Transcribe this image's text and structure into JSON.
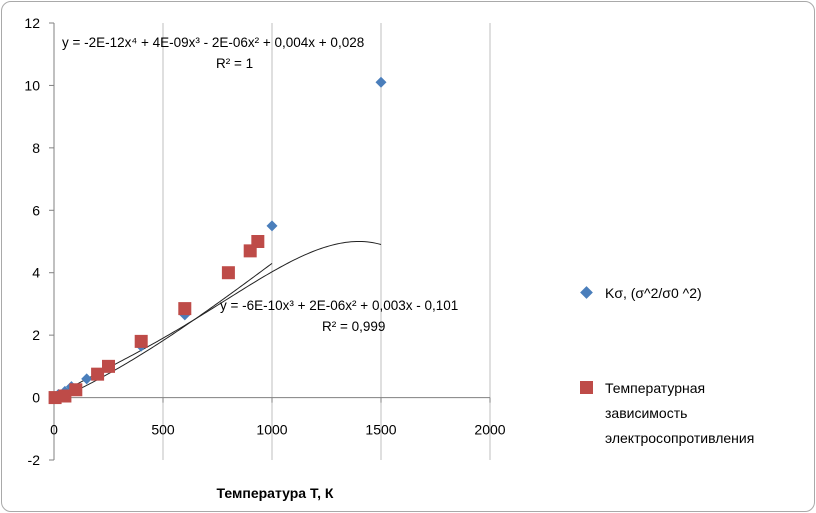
{
  "chart_data": {
    "type": "scatter",
    "title": "",
    "xlabel": "Температура Т, К",
    "ylabel": "",
    "xlim": [
      0,
      2000
    ],
    "ylim": [
      -2,
      12
    ],
    "x_ticks": [
      "0",
      "500",
      "1000",
      "1500",
      "2000"
    ],
    "y_ticks": [
      "-2",
      "0",
      "2",
      "4",
      "6",
      "8",
      "10",
      "12"
    ],
    "grid": "vertical",
    "series": [
      {
        "name": "Kσ, (σ^2/σ0 ^2)",
        "marker": "diamond",
        "color": "#4a7ebb",
        "x": [
          20,
          50,
          80,
          150,
          400,
          600,
          1000,
          1500
        ],
        "y": [
          0.1,
          0.2,
          0.35,
          0.6,
          1.65,
          2.65,
          5.5,
          10.1
        ],
        "trendline": {
          "equation": "y = -2E-12x⁴ + 4E-09x³ - 2E-06x² + 0,004x + 0,028",
          "r2": "R² = 1",
          "coef": [
            0.028,
            0.004,
            -2e-06,
            4e-09,
            -2e-12
          ],
          "x_range": [
            0,
            1500
          ]
        }
      },
      {
        "name": "Температурная зависимость электросопротивления",
        "legend_lines": [
          "Температурная",
          "зависимость",
          "электросопротивления"
        ],
        "marker": "square",
        "color": "#be4b48",
        "x": [
          5,
          50,
          100,
          200,
          250,
          400,
          600,
          800,
          900,
          935
        ],
        "y": [
          0.0,
          0.05,
          0.25,
          0.75,
          1.0,
          1.8,
          2.85,
          4.0,
          4.7,
          5.0
        ],
        "trendline": {
          "equation": "y = -6E-10x³ + 2E-06x² + 0,003x - 0,101",
          "r2": "R² = 0,999",
          "coef": [
            -0.101,
            0.003,
            2e-06,
            -6e-10
          ],
          "x_range": [
            0,
            1000
          ]
        }
      }
    ]
  }
}
